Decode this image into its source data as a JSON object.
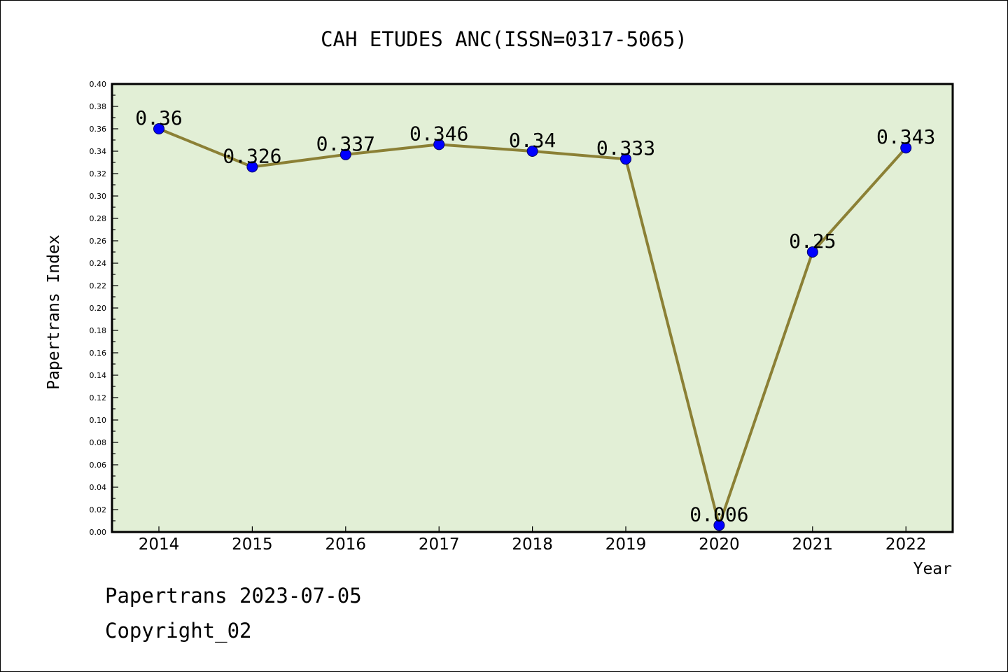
{
  "chart_data": {
    "type": "line",
    "title": "CAH ETUDES ANC(ISSN=0317-5065)",
    "xlabel": "Year",
    "ylabel": "Papertrans Index",
    "categories": [
      "2014",
      "2015",
      "2016",
      "2017",
      "2018",
      "2019",
      "2020",
      "2021",
      "2022"
    ],
    "series": [
      {
        "name": "Papertrans Index",
        "values": [
          0.36,
          0.326,
          0.337,
          0.346,
          0.34,
          0.333,
          0.006,
          0.25,
          0.343
        ],
        "labels": [
          "0.36",
          "0.326",
          "0.337",
          "0.346",
          "0.34",
          "0.333",
          "0.006",
          "0.25",
          "0.343"
        ]
      }
    ],
    "ylim": [
      0,
      0.4
    ],
    "yticks": [
      "0.00",
      "0.02",
      "0.04",
      "0.06",
      "0.08",
      "0.10",
      "0.12",
      "0.14",
      "0.16",
      "0.18",
      "0.20",
      "0.22",
      "0.24",
      "0.26",
      "0.28",
      "0.30",
      "0.32",
      "0.34",
      "0.36",
      "0.38",
      "0.40"
    ],
    "grid": false,
    "colors": {
      "plot_background": "#e2efd6",
      "line": "#8b8035",
      "marker": "#0000ff"
    }
  },
  "footer": {
    "line1": "Papertrans 2023-07-05",
    "line2": "Copyright_02"
  }
}
